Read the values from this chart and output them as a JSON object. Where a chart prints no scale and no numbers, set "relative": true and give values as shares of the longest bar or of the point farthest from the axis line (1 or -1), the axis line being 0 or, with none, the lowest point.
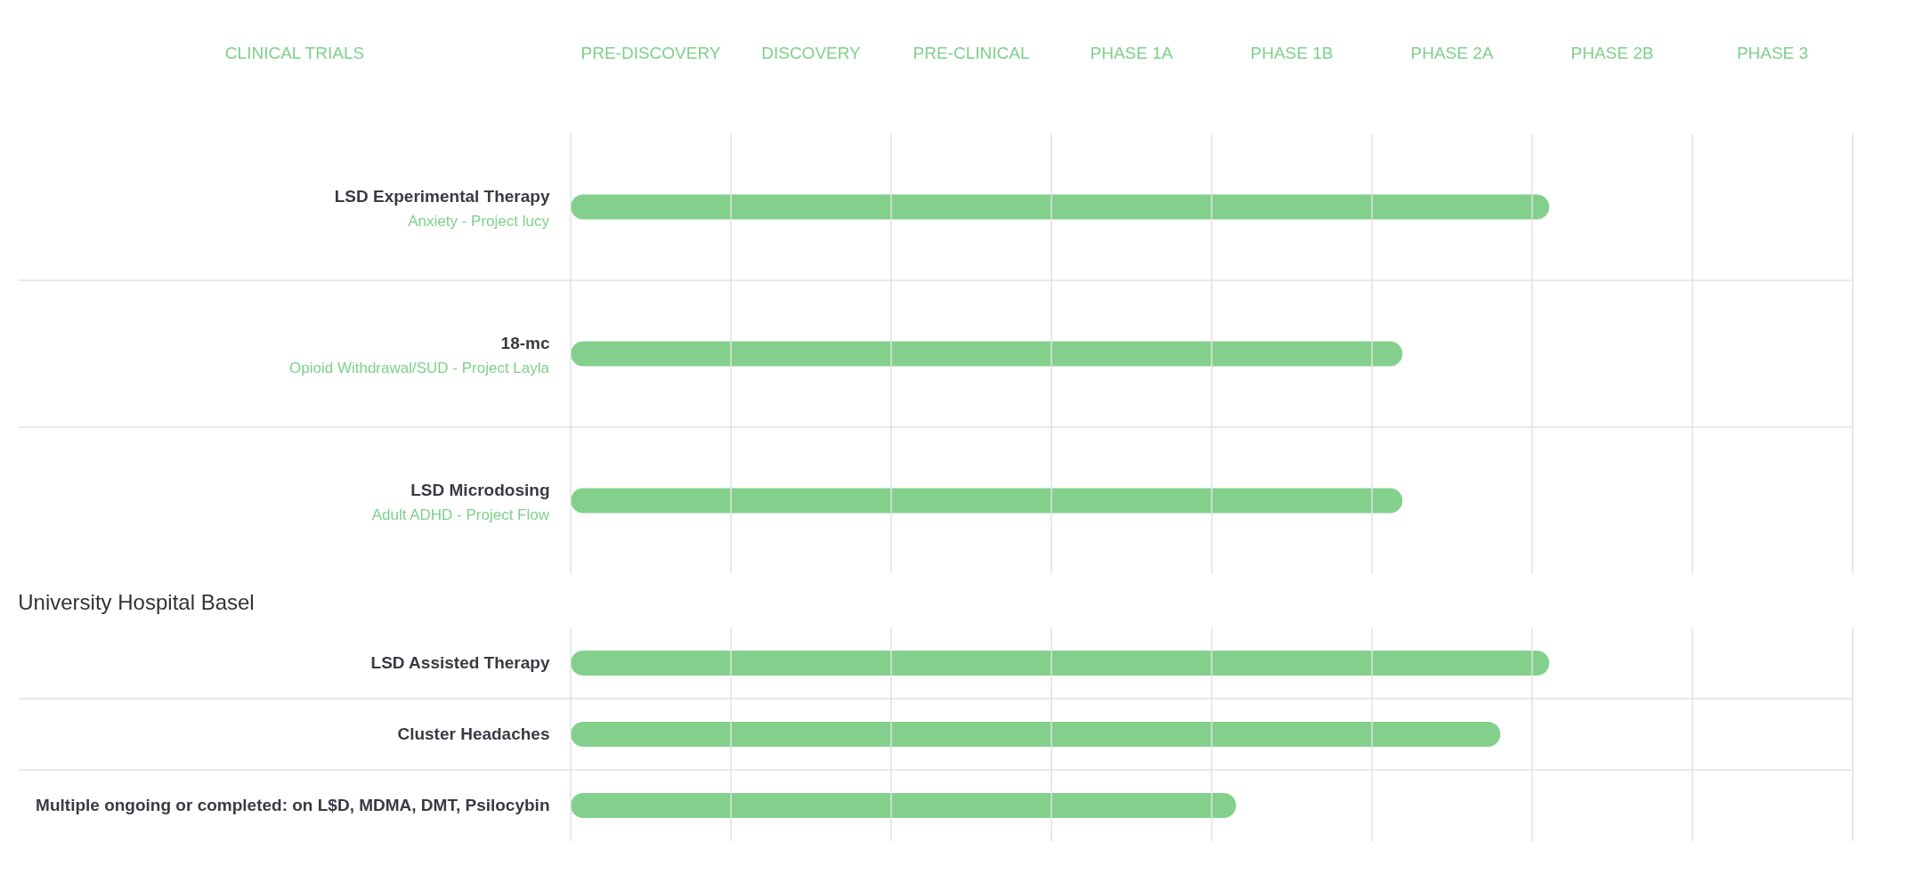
{
  "chart_data": [
    {
      "type": "other",
      "annotations": [
        "CLINICAL TRIALS",
        "PRE-DISCOVERY",
        "DISCOVERY",
        "PRE-CLINICAL",
        "PHASE 1A",
        "PHASE 1B",
        "PHASE 2A",
        "PHASE 2B",
        "PHASE 3"
      ]
    },
    {
      "type": "bar",
      "orientation": "horizontal",
      "relative": true,
      "categories": [
        "LSD Experimental Therapy",
        "18-mc",
        "LSD Microdosing"
      ],
      "values": [
        1,
        0.85,
        0.85
      ],
      "color": "#82d08c",
      "grid": true,
      "annotations": [
        "Anxiety - Project lucy",
        "Opioid Withdrawal/SUD - Project Layla",
        "Adult ADHD - Project Flow"
      ]
    },
    {
      "type": "bar",
      "orientation": "horizontal",
      "relative": true,
      "title": "University Hospital Basel",
      "categories": [
        "LSD Assisted Therapy",
        "Cluster Headaches",
        "Multiple ongoing or completed: on L$D, MDMA, DMT, Psilocybin"
      ],
      "values": [
        1,
        0.95,
        0.68
      ],
      "color": "#82d08c",
      "grid": true
    }
  ]
}
